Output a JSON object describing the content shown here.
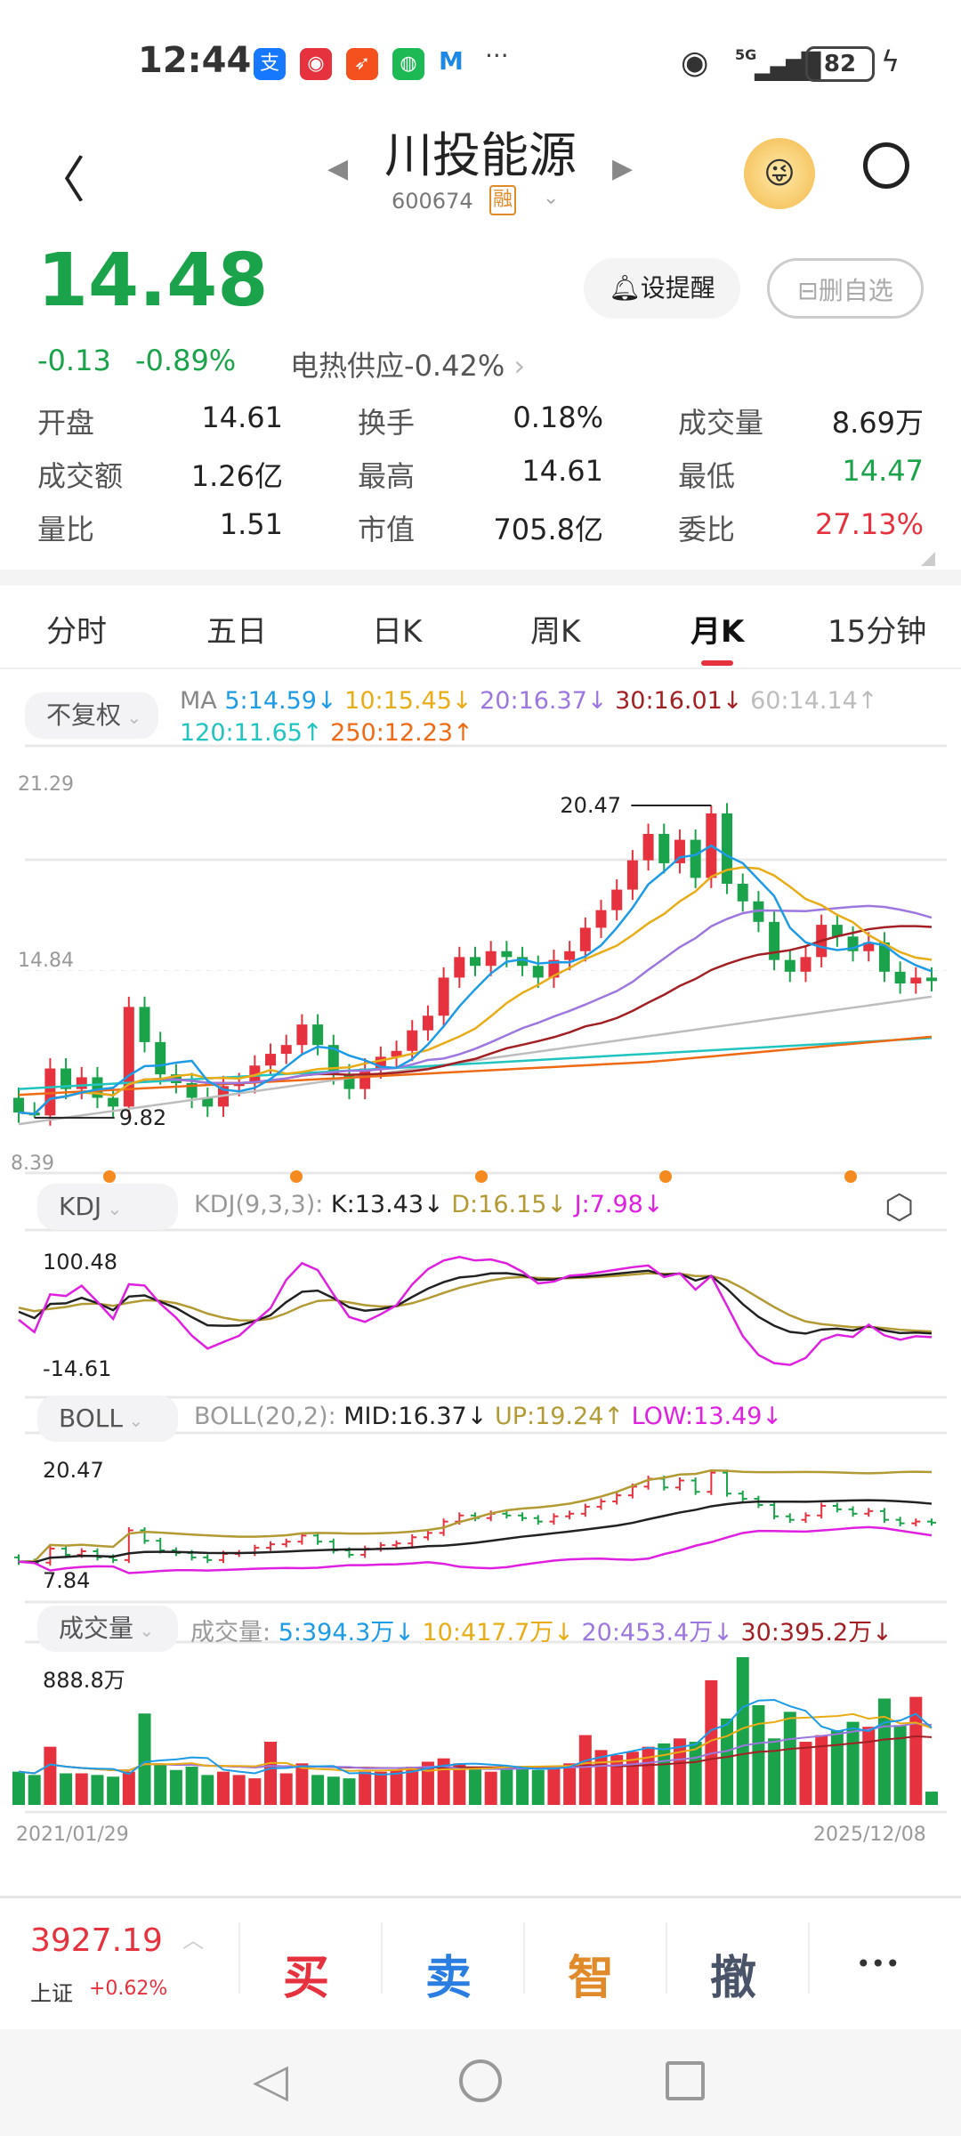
{
  "status_bar": {
    "time": "12:44",
    "battery": "82",
    "network": "5G",
    "more": "···"
  },
  "header": {
    "title": "川投能源",
    "code": "600674",
    "margin_badge": "融"
  },
  "quote": {
    "price": "14.48",
    "change": "-0.13",
    "change_pct": "-0.89%",
    "sector": "电热供应",
    "sector_pct": "-0.42%",
    "alert_button": "设提醒",
    "remove_button": "删自选",
    "stats": [
      {
        "label": "开盘",
        "value": "14.61"
      },
      {
        "label": "换手",
        "value": "0.18%"
      },
      {
        "label": "成交量",
        "value": "8.69万"
      },
      {
        "label": "成交额",
        "value": "1.26亿"
      },
      {
        "label": "最高",
        "value": "14.61"
      },
      {
        "label": "最低",
        "value": "14.47"
      },
      {
        "label": "量比",
        "value": "1.51"
      },
      {
        "label": "市值",
        "value": "705.8亿"
      },
      {
        "label": "委比",
        "value": "27.13%"
      }
    ]
  },
  "tabs": [
    {
      "label": "分时"
    },
    {
      "label": "五日"
    },
    {
      "label": "日K"
    },
    {
      "label": "周K"
    },
    {
      "label": "月K",
      "active": true
    },
    {
      "label": "15分钟"
    }
  ],
  "colors": {
    "up": "#e5323e",
    "down": "#1aa34a",
    "ma5": "#1e9be6",
    "ma10": "#e8ac16",
    "ma20": "#9d77e0",
    "ma30": "#a21f24",
    "ma60": "#bdbdbd",
    "ma120": "#22c4c0",
    "ma250": "#ee6a14",
    "k": "#222222",
    "d": "#b29a34",
    "j": "#e020e0"
  },
  "ma_legend": {
    "adjust": "不复权",
    "prefix": "MA",
    "ma5": "5:14.59↓",
    "ma10": "10:15.45↓",
    "ma20": "20:16.37↓",
    "ma30": "30:16.01↓",
    "ma60": "60:14.14↑",
    "ma120": "120:11.65↑",
    "ma250": "250:12.23↑"
  },
  "kdj_legend": {
    "selector": "KDJ",
    "name": "KDJ(9,3,3):",
    "k": "K:13.43↓",
    "d": "D:16.15↓",
    "j": "J:7.98↓"
  },
  "boll_legend": {
    "selector": "BOLL",
    "name": "BOLL(20,2):",
    "mid": "MID:16.37↓",
    "up": "UP:19.24↑",
    "low": "LOW:13.49↓"
  },
  "vol_legend": {
    "selector": "成交量",
    "name": "成交量:",
    "v5": "5:394.3万↓",
    "v10": "10:417.7万↓",
    "v20": "20:453.4万↓",
    "v30": "30:395.2万↓"
  },
  "chart_data": {
    "type": "candlestick",
    "period": "monthly",
    "x_start": "2021/01/29",
    "x_end": "2025/12/08",
    "price_axis": {
      "max": "21.29",
      "mid": "14.84",
      "min": "8.39",
      "ylim": [
        8.39,
        21.29
      ]
    },
    "annotations": {
      "high": "20.47",
      "low": "9.82"
    },
    "closes": [
      10.0,
      9.9,
      11.5,
      10.8,
      11.2,
      10.5,
      10.2,
      13.6,
      12.4,
      11.3,
      11.0,
      10.5,
      10.2,
      10.9,
      11.0,
      11.6,
      12.0,
      12.3,
      13.0,
      12.3,
      11.3,
      10.8,
      11.5,
      11.9,
      12.1,
      12.8,
      13.3,
      14.6,
      15.3,
      15.0,
      15.5,
      15.3,
      15.0,
      14.6,
      15.2,
      15.5,
      16.3,
      16.9,
      17.6,
      18.6,
      19.5,
      18.5,
      19.3,
      18.0,
      20.2,
      17.8,
      17.2,
      16.5,
      15.2,
      14.8,
      15.3,
      16.4,
      16.0,
      15.5,
      15.8,
      14.8,
      14.4,
      14.6,
      14.48
    ],
    "first_open": 10.5,
    "volumes": [
      200,
      180,
      350,
      190,
      190,
      180,
      170,
      200,
      550,
      240,
      210,
      230,
      180,
      200,
      180,
      160,
      380,
      190,
      250,
      180,
      170,
      160,
      200,
      200,
      210,
      230,
      260,
      280,
      250,
      220,
      200,
      230,
      220,
      210,
      230,
      250,
      420,
      330,
      300,
      320,
      350,
      370,
      400,
      380,
      750,
      520,
      888.8,
      600,
      400,
      560,
      380,
      420,
      450,
      500,
      470,
      640,
      480,
      650,
      80
    ],
    "kdj_axis": {
      "max": "100.48",
      "min": "-14.61",
      "ylim": [
        -14.61,
        100.48
      ]
    },
    "boll_axis": {
      "max": "20.47",
      "min": "7.84",
      "ylim": [
        7.84,
        20.47
      ]
    },
    "vol_axis": {
      "max": "888.8万",
      "ylim": [
        0,
        888.8
      ]
    }
  },
  "bottom_bar": {
    "index_value": "3927.19",
    "index_name": "上证",
    "index_pct": "+0.62%",
    "buy": "买",
    "sell": "卖",
    "smart": "智",
    "cancel": "撤",
    "more": "•••"
  }
}
